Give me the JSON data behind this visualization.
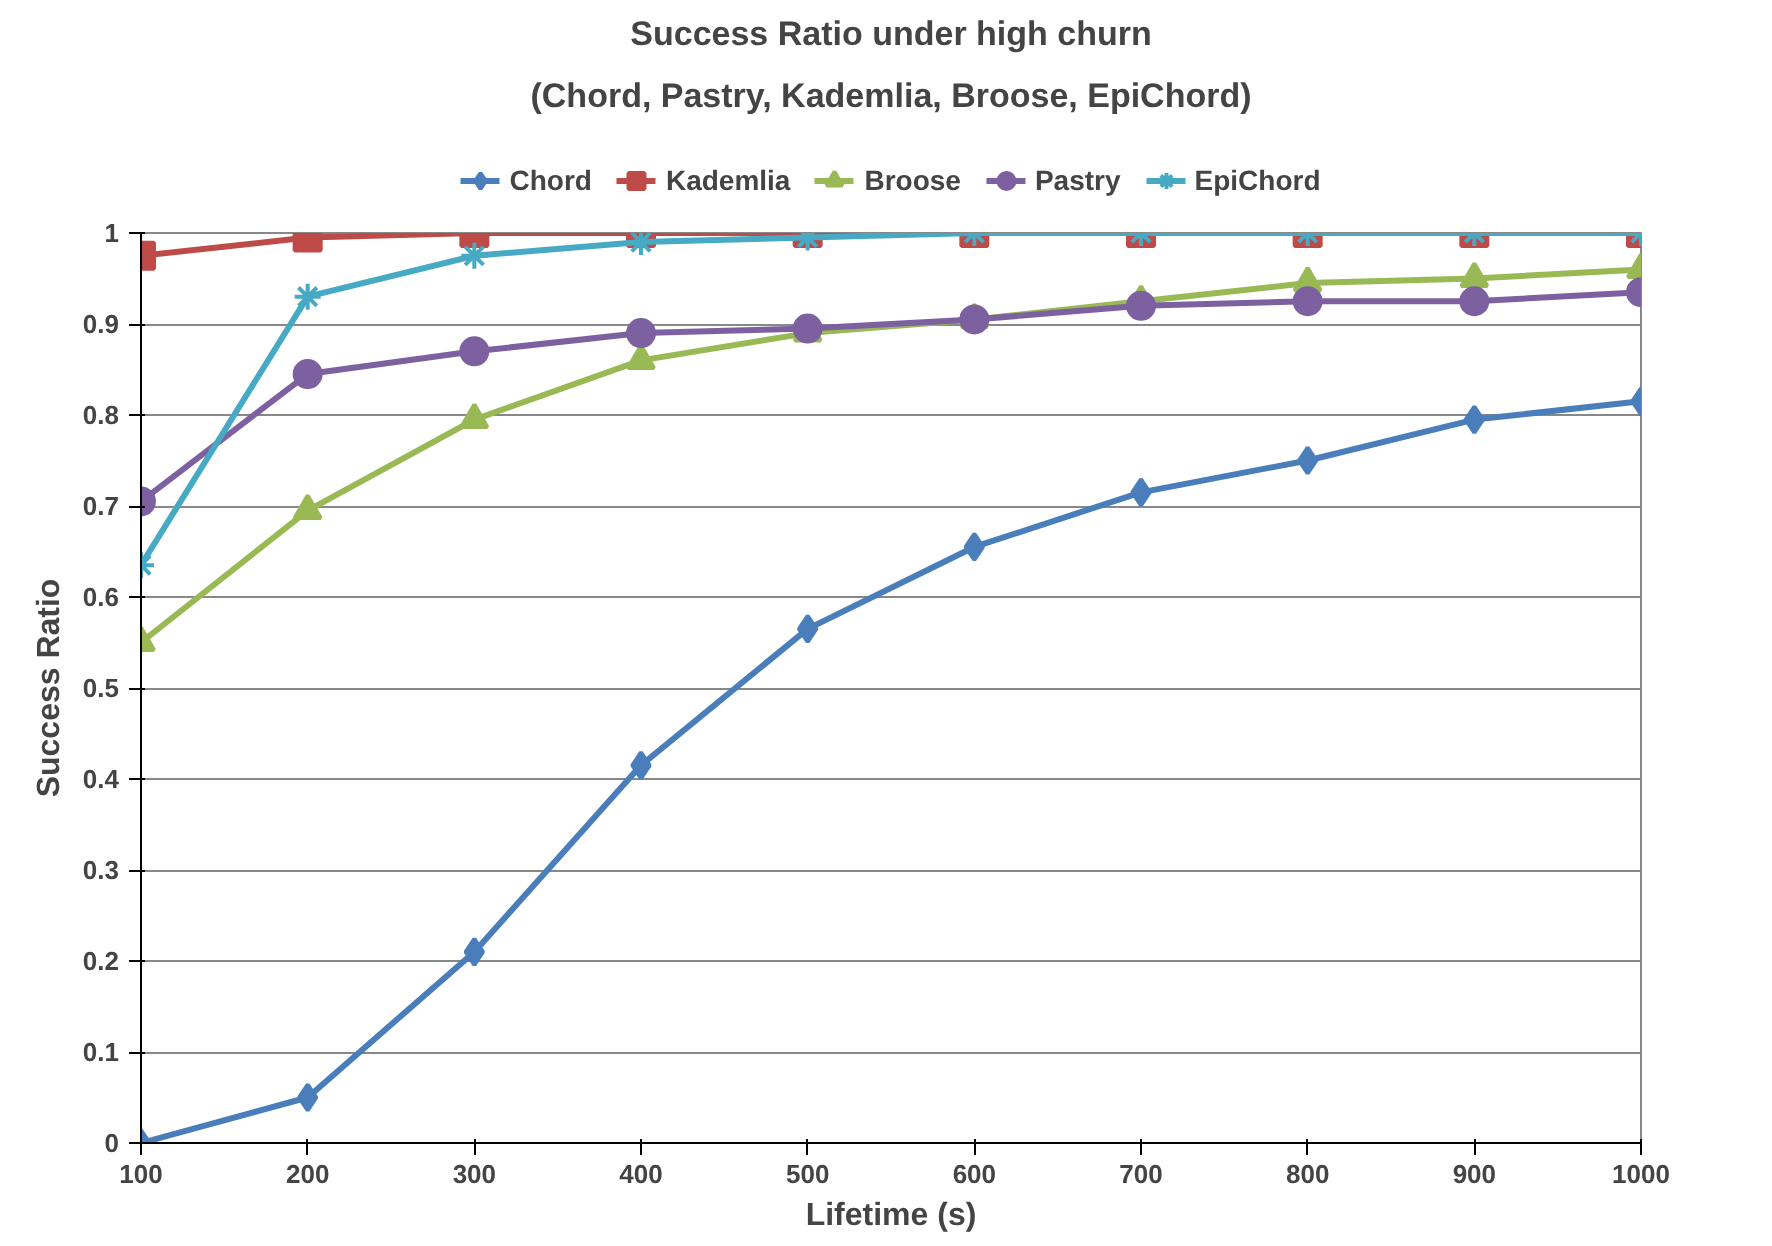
{
  "chart_data": {
    "type": "line",
    "title": "Success Ratio under high churn",
    "subtitle": "(Chord, Pastry, Kademlia, Broose, EpiChord)",
    "xlabel": "Lifetime (s)",
    "ylabel": "Success Ratio",
    "x": [
      100,
      200,
      300,
      400,
      500,
      600,
      700,
      800,
      900,
      1000
    ],
    "xlim": [
      100,
      1000
    ],
    "xticks": [
      100,
      200,
      300,
      400,
      500,
      600,
      700,
      800,
      900,
      1000
    ],
    "ylim": [
      0,
      1
    ],
    "yticks": [
      0,
      0.1,
      0.2,
      0.3,
      0.4,
      0.5,
      0.6,
      0.7,
      0.8,
      0.9,
      1
    ],
    "grid": "y",
    "legend": "top",
    "line_style": "solid",
    "series": [
      {
        "name": "Chord",
        "color": "#4a7ebb",
        "marker": "diamond",
        "values": [
          0,
          0.05,
          0.21,
          0.415,
          0.565,
          0.655,
          0.715,
          0.75,
          0.795,
          0.815
        ]
      },
      {
        "name": "Kademlia",
        "color": "#be4b48",
        "marker": "square",
        "values": [
          0.975,
          0.995,
          1,
          1,
          1,
          1,
          1,
          1,
          1,
          1
        ]
      },
      {
        "name": "Broose",
        "color": "#98b954",
        "marker": "triangle",
        "values": [
          0.55,
          0.695,
          0.795,
          0.86,
          0.89,
          0.905,
          0.925,
          0.945,
          0.95,
          0.96
        ]
      },
      {
        "name": "Pastry",
        "color": "#7d60a0",
        "marker": "circle",
        "values": [
          0.705,
          0.845,
          0.87,
          0.89,
          0.895,
          0.905,
          0.92,
          0.925,
          0.925,
          0.935
        ]
      },
      {
        "name": "EpiChord",
        "color": "#46aac5",
        "marker": "cross",
        "values": [
          0.635,
          0.93,
          0.975,
          0.99,
          0.995,
          1,
          1,
          1,
          1,
          1
        ]
      }
    ]
  }
}
